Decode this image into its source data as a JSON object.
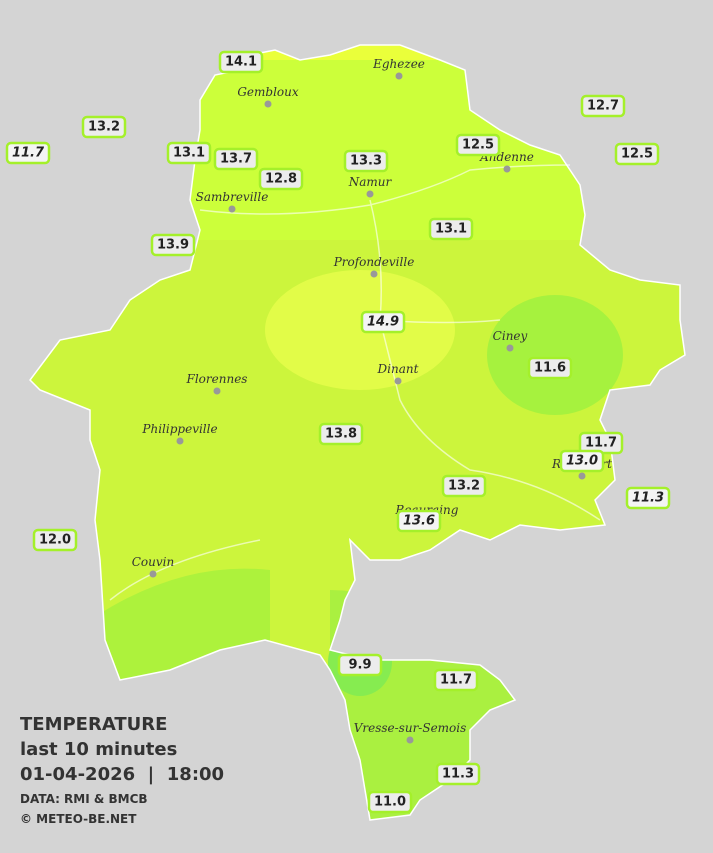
{
  "legend": {
    "title": "TEMPERATURE",
    "period": "last 10 minutes",
    "datetime": "01-04-2026  |  18:00",
    "source": "DATA: RMI & BMCB",
    "credit": "© METEO-BE.NET"
  },
  "towns": [
    "Eghezee",
    "Gembloux",
    "Andenne",
    "Namur",
    "Sambreville",
    "Profondeville",
    "Ciney",
    "Dinant",
    "Florennes",
    "Philippeville",
    "Rochefort",
    "Beauraing",
    "Couvin",
    "Vresse-sur-Semois"
  ],
  "stations": [
    {
      "value": "14.1",
      "italic": false
    },
    {
      "value": "13.2",
      "italic": false
    },
    {
      "value": "11.7",
      "italic": true
    },
    {
      "value": "13.1",
      "italic": false
    },
    {
      "value": "13.7",
      "italic": false
    },
    {
      "value": "12.8",
      "italic": false
    },
    {
      "value": "13.3",
      "italic": false
    },
    {
      "value": "12.5",
      "italic": false
    },
    {
      "value": "12.7",
      "italic": false
    },
    {
      "value": "12.5",
      "italic": false
    },
    {
      "value": "13.9",
      "italic": false
    },
    {
      "value": "13.1",
      "italic": false
    },
    {
      "value": "14.9",
      "italic": true
    },
    {
      "value": "11.6",
      "italic": false
    },
    {
      "value": "13.8",
      "italic": false
    },
    {
      "value": "11.7",
      "italic": false
    },
    {
      "value": "13.0",
      "italic": true
    },
    {
      "value": "13.2",
      "italic": false
    },
    {
      "value": "11.3",
      "italic": true
    },
    {
      "value": "13.6",
      "italic": true
    },
    {
      "value": "12.0",
      "italic": false
    },
    {
      "value": "9.9",
      "italic": false
    },
    {
      "value": "11.7",
      "italic": false
    },
    {
      "value": "11.3",
      "italic": false
    },
    {
      "value": "11.0",
      "italic": false
    }
  ]
}
